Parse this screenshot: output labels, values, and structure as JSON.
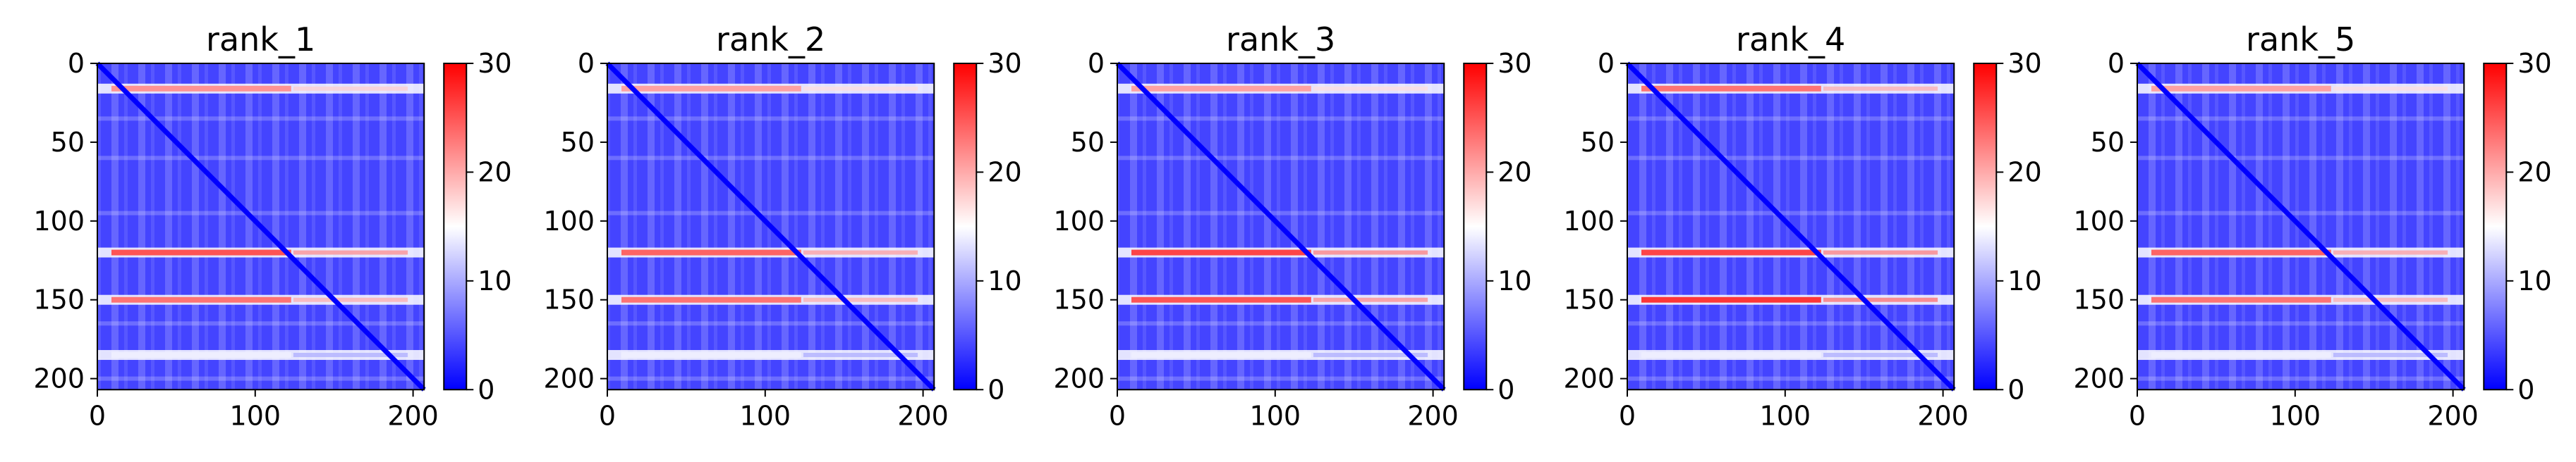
{
  "chart_data": [
    {
      "type": "heatmap",
      "title": "rank_1",
      "xticks": [
        "0",
        "100",
        "200"
      ],
      "yticks": [
        "0",
        "50",
        "100",
        "150",
        "200"
      ],
      "xlim": [
        0,
        207
      ],
      "ylim": [
        207,
        0
      ],
      "colorbar": {
        "ticks": [
          "0",
          "10",
          "20",
          "30"
        ],
        "range": [
          0,
          30
        ],
        "colormap": [
          "#0000ff",
          "#ffffff",
          "#ff0000"
        ]
      },
      "bands": [
        {
          "row": 16,
          "level": 22
        },
        {
          "row": 120,
          "level": 26
        },
        {
          "row": 150,
          "level": 24
        },
        {
          "row": 185,
          "level": 14
        }
      ],
      "diagonal_value": 0
    },
    {
      "type": "heatmap",
      "title": "rank_2",
      "xticks": [
        "0",
        "100",
        "200"
      ],
      "yticks": [
        "0",
        "50",
        "100",
        "150",
        "200"
      ],
      "xlim": [
        0,
        207
      ],
      "ylim": [
        207,
        0
      ],
      "colorbar": {
        "ticks": [
          "0",
          "10",
          "20",
          "30"
        ],
        "range": [
          0,
          30
        ],
        "colormap": [
          "#0000ff",
          "#ffffff",
          "#ff0000"
        ]
      },
      "bands": [
        {
          "row": 16,
          "level": 21
        },
        {
          "row": 120,
          "level": 25
        },
        {
          "row": 150,
          "level": 24
        },
        {
          "row": 185,
          "level": 14
        }
      ],
      "diagonal_value": 0
    },
    {
      "type": "heatmap",
      "title": "rank_3",
      "xticks": [
        "0",
        "100",
        "200"
      ],
      "yticks": [
        "0",
        "50",
        "100",
        "150",
        "200"
      ],
      "xlim": [
        0,
        207
      ],
      "ylim": [
        207,
        0
      ],
      "colorbar": {
        "ticks": [
          "0",
          "10",
          "20",
          "30"
        ],
        "range": [
          0,
          30
        ],
        "colormap": [
          "#0000ff",
          "#ffffff",
          "#ff0000"
        ]
      },
      "bands": [
        {
          "row": 16,
          "level": 21
        },
        {
          "row": 120,
          "level": 27
        },
        {
          "row": 150,
          "level": 26
        },
        {
          "row": 185,
          "level": 14
        }
      ],
      "diagonal_value": 0
    },
    {
      "type": "heatmap",
      "title": "rank_4",
      "xticks": [
        "0",
        "100",
        "200"
      ],
      "yticks": [
        "0",
        "50",
        "100",
        "150",
        "200"
      ],
      "xlim": [
        0,
        207
      ],
      "ylim": [
        207,
        0
      ],
      "colorbar": {
        "ticks": [
          "0",
          "10",
          "20",
          "30"
        ],
        "range": [
          0,
          30
        ],
        "colormap": [
          "#0000ff",
          "#ffffff",
          "#ff0000"
        ]
      },
      "bands": [
        {
          "row": 16,
          "level": 24
        },
        {
          "row": 120,
          "level": 27
        },
        {
          "row": 150,
          "level": 28
        },
        {
          "row": 185,
          "level": 14
        }
      ],
      "diagonal_value": 0
    },
    {
      "type": "heatmap",
      "title": "rank_5",
      "xticks": [
        "0",
        "100",
        "200"
      ],
      "yticks": [
        "0",
        "50",
        "100",
        "150",
        "200"
      ],
      "xlim": [
        0,
        207
      ],
      "ylim": [
        207,
        0
      ],
      "colorbar": {
        "ticks": [
          "0",
          "10",
          "20",
          "30"
        ],
        "range": [
          0,
          30
        ],
        "colormap": [
          "#0000ff",
          "#ffffff",
          "#ff0000"
        ]
      },
      "bands": [
        {
          "row": 16,
          "level": 21
        },
        {
          "row": 120,
          "level": 25
        },
        {
          "row": 150,
          "level": 24
        },
        {
          "row": 185,
          "level": 14
        }
      ],
      "diagonal_value": 0
    }
  ]
}
